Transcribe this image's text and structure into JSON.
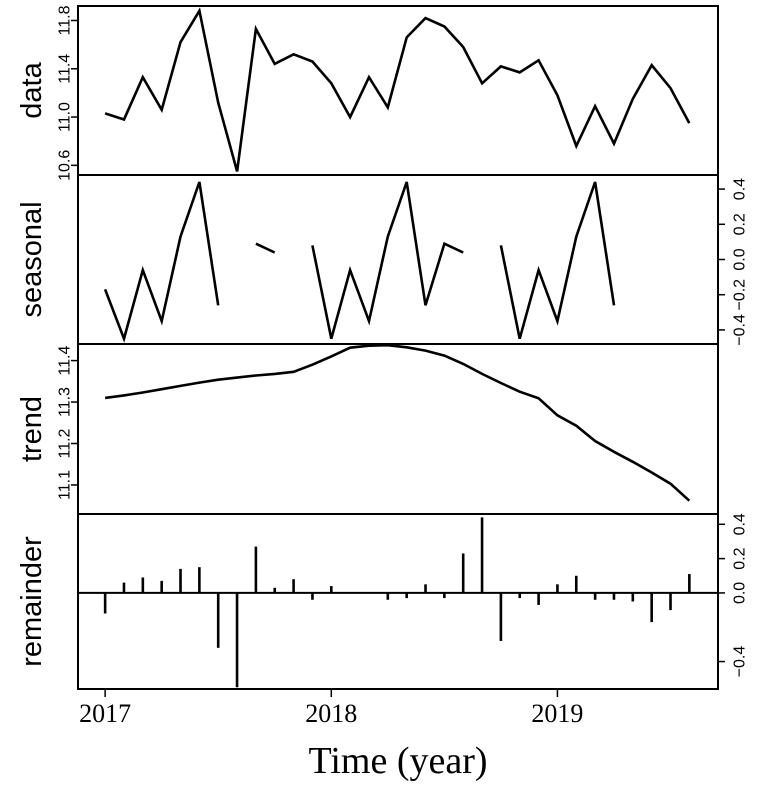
{
  "chart_data": {
    "type": "line",
    "xlabel": "Time (year)",
    "x_ticks": [
      {
        "value": 2017,
        "label": "2017"
      },
      {
        "value": 2018,
        "label": "2018"
      },
      {
        "value": 2019,
        "label": "2019"
      }
    ],
    "x": [
      2017.0,
      2017.0833,
      2017.1667,
      2017.25,
      2017.3333,
      2017.4167,
      2017.5,
      2017.5833,
      2017.6667,
      2017.75,
      2017.8333,
      2017.9167,
      2018.0,
      2018.0833,
      2018.1667,
      2018.25,
      2018.3333,
      2018.4167,
      2018.5,
      2018.5833,
      2018.6667,
      2018.75,
      2018.8333,
      2018.9167,
      2019.0,
      2019.0833,
      2019.1667,
      2019.25,
      2019.3333,
      2019.4167,
      2019.5,
      2019.5833
    ],
    "xlim": [
      2016.88,
      2019.71
    ],
    "panels": [
      {
        "name": "data",
        "ylabel": "data",
        "style": "line",
        "axis_side": "left",
        "ylim": [
          10.52,
          11.92
        ],
        "ticks": [
          {
            "value": 10.6,
            "label": "10.6"
          },
          {
            "value": 11.0,
            "label": "11.0"
          },
          {
            "value": 11.4,
            "label": "11.4"
          },
          {
            "value": 11.8,
            "label": "11.8"
          }
        ],
        "values": [
          11.03,
          10.98,
          11.33,
          11.06,
          11.62,
          11.88,
          11.12,
          10.55,
          11.73,
          11.44,
          11.52,
          11.46,
          11.28,
          11.0,
          11.33,
          11.08,
          11.66,
          11.82,
          11.75,
          11.58,
          11.28,
          11.42,
          11.37,
          11.47,
          11.18,
          10.76,
          11.09,
          10.78,
          11.15,
          11.43,
          11.24,
          10.95
        ]
      },
      {
        "name": "seasonal",
        "ylabel": "seasonal",
        "style": "line",
        "axis_side": "right",
        "ylim": [
          -0.48,
          0.48
        ],
        "ticks": [
          {
            "value": -0.4,
            "label": "−0.4"
          },
          {
            "value": -0.2,
            "label": "−0.2"
          },
          {
            "value": 0.0,
            "label": "0.0"
          },
          {
            "value": 0.2,
            "label": "0.2"
          },
          {
            "value": 0.4,
            "label": "0.4"
          }
        ],
        "values": [
          -0.17,
          -0.45,
          -0.06,
          -0.35,
          0.13,
          0.44,
          -0.26,
          null,
          0.09,
          0.04,
          null,
          0.08,
          -0.45,
          -0.06,
          -0.35,
          0.13,
          0.44,
          -0.26,
          0.09,
          0.04,
          null,
          0.08,
          -0.45,
          -0.06,
          -0.35,
          0.13,
          0.44,
          -0.26,
          null,
          null,
          null,
          null
        ],
        "values_note_free": true
      },
      {
        "name": "trend",
        "ylabel": "trend",
        "style": "line",
        "axis_side": "left",
        "ylim": [
          11.03,
          11.44
        ],
        "ticks": [
          {
            "value": 11.1,
            "label": "11.1"
          },
          {
            "value": 11.2,
            "label": "11.2"
          },
          {
            "value": 11.3,
            "label": "11.3"
          },
          {
            "value": 11.4,
            "label": "11.4"
          }
        ],
        "values": [
          11.31,
          11.316,
          11.323,
          11.331,
          11.339,
          11.347,
          11.354,
          11.359,
          11.364,
          11.368,
          11.373,
          11.39,
          11.41,
          11.431,
          11.436,
          11.437,
          11.432,
          11.424,
          11.412,
          11.392,
          11.368,
          11.346,
          11.325,
          11.309,
          11.268,
          11.243,
          11.206,
          11.18,
          11.156,
          11.13,
          11.103,
          11.062
        ]
      },
      {
        "name": "remainder",
        "ylabel": "remainder",
        "style": "bar",
        "axis_side": "right",
        "ylim": [
          -0.56,
          0.46
        ],
        "ticks": [
          {
            "value": -0.4,
            "label": "−0.4"
          },
          {
            "value": 0.0,
            "label": "0.0"
          },
          {
            "value": 0.2,
            "label": "0.2"
          },
          {
            "value": 0.4,
            "label": "0.4"
          }
        ],
        "values": [
          -0.12,
          0.06,
          0.09,
          0.07,
          0.14,
          0.15,
          -0.32,
          -0.55,
          0.27,
          0.03,
          0.08,
          -0.04,
          0.04,
          0.0,
          0.0,
          -0.04,
          -0.03,
          0.05,
          -0.03,
          0.23,
          0.44,
          -0.28,
          -0.03,
          -0.07,
          0.05,
          0.1,
          -0.04,
          -0.04,
          -0.05,
          -0.17,
          -0.1,
          0.11
        ]
      }
    ]
  }
}
